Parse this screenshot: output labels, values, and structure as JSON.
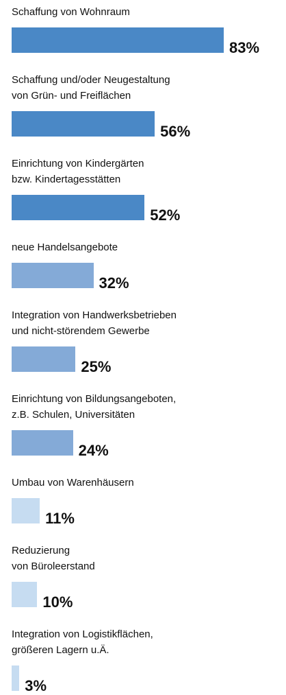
{
  "chart_data": {
    "type": "bar",
    "orientation": "horizontal",
    "categories": [
      "Schaffung von Wohnraum",
      "Schaffung und/oder Neugestaltung\nvon Grün- und Freiflächen",
      "Einrichtung von Kindergärten\nbzw. Kindertagesstätten",
      "neue Handelsangebote",
      "Integration von Handwerksbetrieben\nund nicht-störendem Gewerbe",
      "Einrichtung von Bildungsangeboten,\nz.B. Schulen, Universitäten",
      "Umbau von Warenhäusern",
      "Reduzierung\nvon Büroleerstand",
      "Integration von Logistikflächen,\ngrößeren Lagern u.Ä."
    ],
    "values": [
      83,
      56,
      52,
      32,
      25,
      24,
      11,
      10,
      3
    ],
    "value_labels": [
      "83%",
      "56%",
      "52%",
      "32%",
      "25%",
      "24%",
      "11%",
      "10%",
      "3%"
    ],
    "colors": [
      "#4a88c6",
      "#4a88c6",
      "#4a88c6",
      "#84aad7",
      "#84aad7",
      "#84aad7",
      "#c6dcf1",
      "#c6dcf1",
      "#c6dcf1"
    ]
  }
}
